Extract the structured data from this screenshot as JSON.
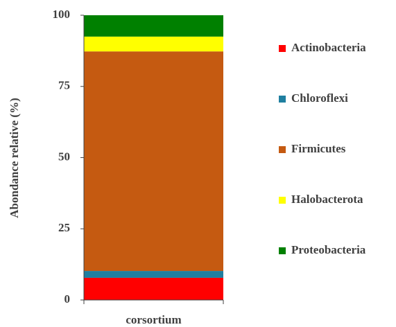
{
  "chart_data": {
    "type": "stacked_bar",
    "y_label": "Abondance relative  (%)",
    "categories": [
      "corsortium"
    ],
    "series": [
      {
        "name": "Actinobacteria",
        "color": "#ff0000",
        "values": [
          7.8
        ]
      },
      {
        "name": "Chloroflexi",
        "color": "#1f7fa0",
        "values": [
          2.4
        ]
      },
      {
        "name": "Firmicutes",
        "color": "#c55a11",
        "values": [
          77.1
        ]
      },
      {
        "name": "Halobacterota",
        "color": "#ffff00",
        "values": [
          5.2
        ]
      },
      {
        "name": "Proteobacteria",
        "color": "#008000",
        "values": [
          7.5
        ]
      }
    ],
    "ylim": [
      0,
      100
    ],
    "yticks": [
      0,
      25,
      50,
      75,
      100
    ],
    "legend": "right"
  }
}
